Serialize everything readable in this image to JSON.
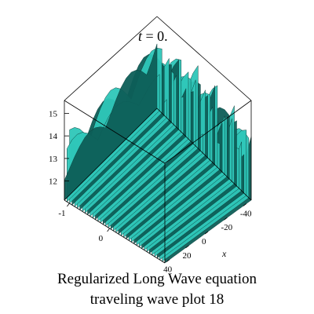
{
  "chart_data": {
    "type": "surface3d",
    "title_var": "t",
    "title_rest": " = 0.",
    "xlabel": "x",
    "x_ticks": [
      "-40",
      "-20",
      "0",
      "20",
      "40"
    ],
    "y_ticks": [
      "-1",
      "0"
    ],
    "z_ticks": [
      "12",
      "13",
      "14",
      "15"
    ],
    "zlim": [
      11.5,
      15.5
    ],
    "xlim": [
      -45,
      45
    ],
    "surface_color": "#2fc7b9",
    "surface_shadow": "#0d5e58",
    "stripe_count": 40
  },
  "caption": {
    "line1": "Regularized Long Wave equation",
    "line2": "traveling wave plot 18"
  }
}
